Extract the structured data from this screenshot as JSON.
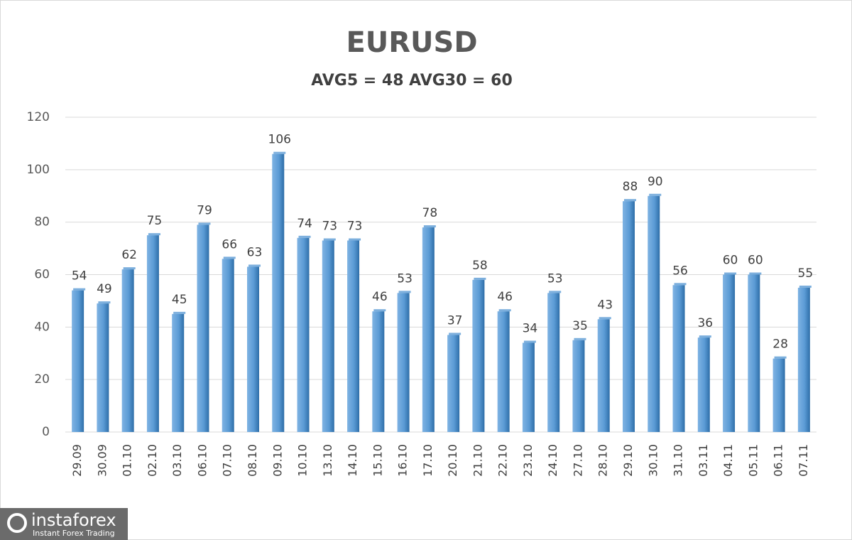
{
  "chart_data": {
    "type": "bar",
    "title": "EURUSD",
    "subtitle": "AVG5 = 48 AVG30 = 60",
    "categories": [
      "29.09",
      "30.09",
      "01.10",
      "02.10",
      "03.10",
      "06.10",
      "07.10",
      "08.10",
      "09.10",
      "10.10",
      "13.10",
      "14.10",
      "15.10",
      "16.10",
      "17.10",
      "20.10",
      "21.10",
      "22.10",
      "23.10",
      "24.10",
      "27.10",
      "28.10",
      "29.10",
      "30.10",
      "31.10",
      "03.11",
      "04.11",
      "05.11",
      "06.11",
      "07.11"
    ],
    "values": [
      54,
      49,
      62,
      75,
      45,
      79,
      66,
      63,
      106,
      74,
      73,
      73,
      46,
      53,
      78,
      37,
      58,
      46,
      34,
      53,
      35,
      43,
      88,
      90,
      56,
      36,
      60,
      60,
      28,
      55
    ],
    "color": "#5b9bd5",
    "ylim": [
      0,
      120
    ],
    "yticks": [
      0,
      20,
      40,
      60,
      80,
      100,
      120
    ],
    "grid": true,
    "logo": {
      "name": "instaforex",
      "tagline": "Instant Forex Trading"
    }
  }
}
